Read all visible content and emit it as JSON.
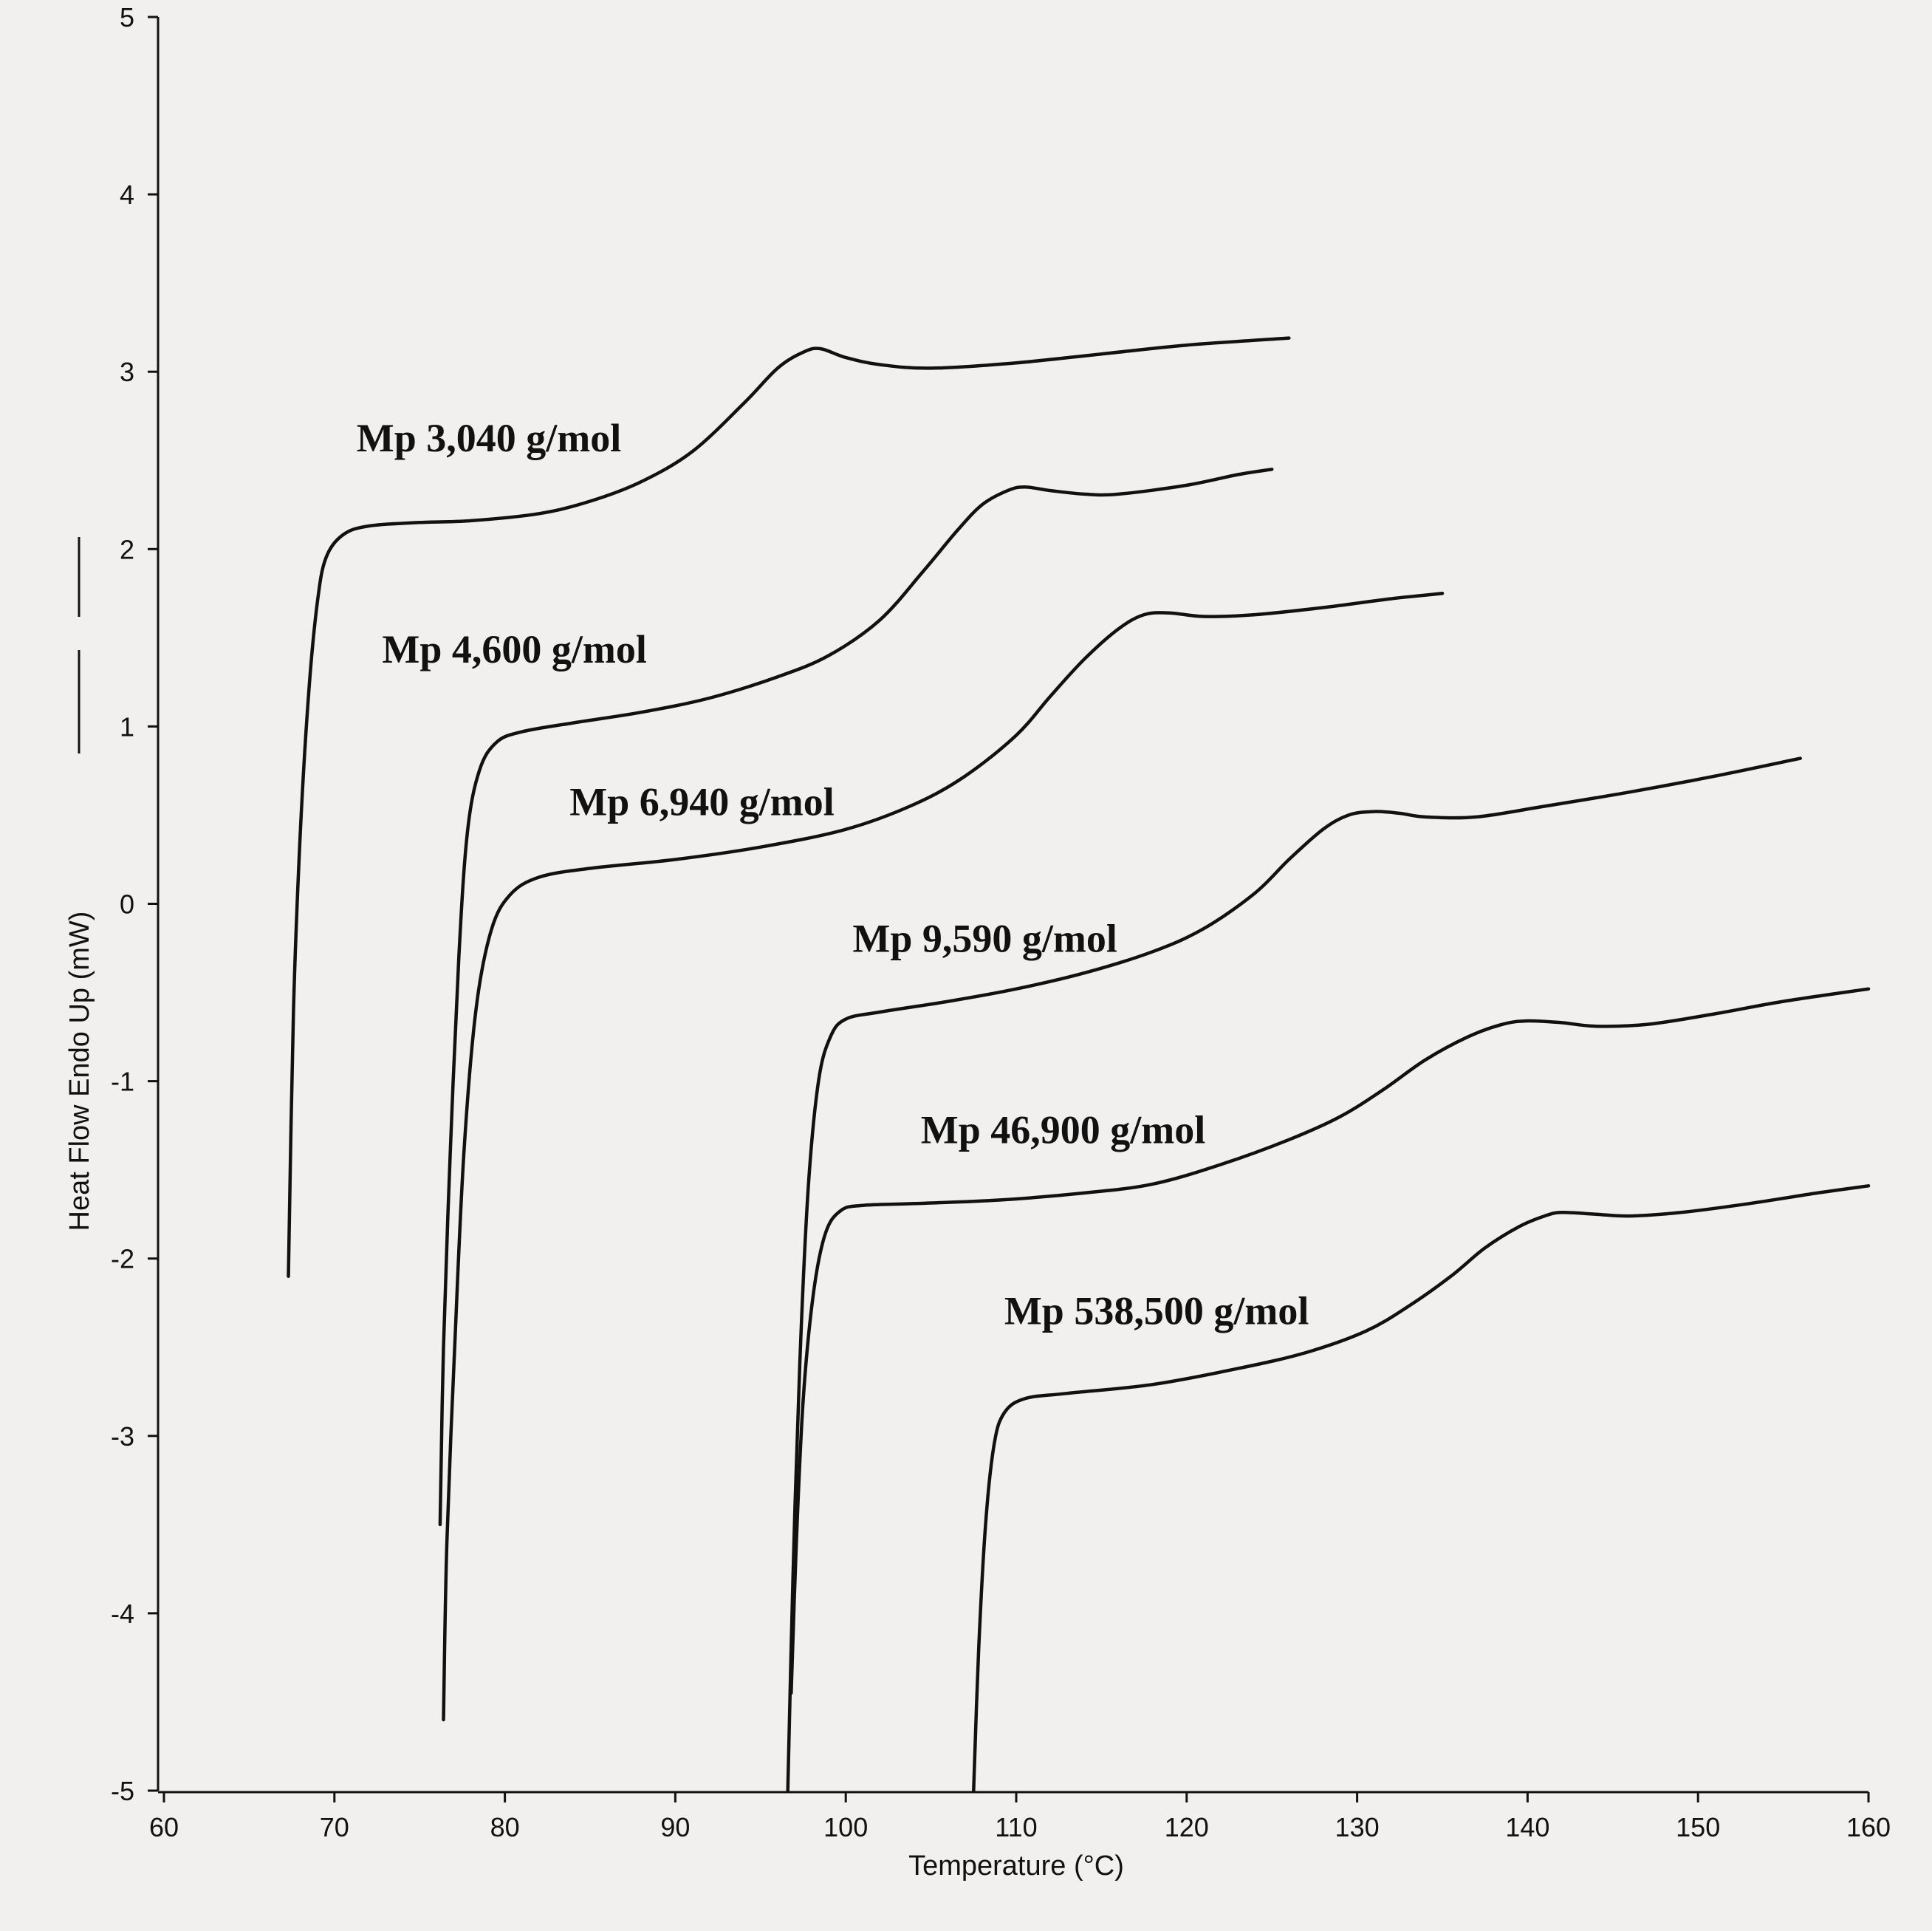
{
  "chart_data": {
    "type": "line",
    "xlabel": "Temperature (°C)",
    "ylabel": "Heat Flow Endo Up (mW)",
    "xlim": [
      60,
      160
    ],
    "ylim": [
      -5,
      5
    ],
    "xticks": [
      60,
      70,
      80,
      90,
      100,
      110,
      120,
      130,
      140,
      150,
      160
    ],
    "yticks": [
      5,
      4,
      3,
      2,
      1,
      0,
      -1,
      -2,
      -3,
      -4,
      -5
    ],
    "grid": false,
    "series": [
      {
        "name": "Mp 3,040 g/mol",
        "points": [
          [
            67.3,
            -2.1
          ],
          [
            67.6,
            -0.6
          ],
          [
            68.0,
            0.4
          ],
          [
            68.5,
            1.2
          ],
          [
            69.0,
            1.7
          ],
          [
            69.5,
            1.95
          ],
          [
            70.5,
            2.08
          ],
          [
            72,
            2.13
          ],
          [
            75,
            2.15
          ],
          [
            78,
            2.16
          ],
          [
            82,
            2.2
          ],
          [
            85,
            2.27
          ],
          [
            88,
            2.38
          ],
          [
            91,
            2.55
          ],
          [
            94,
            2.82
          ],
          [
            96,
            3.02
          ],
          [
            97.5,
            3.11
          ],
          [
            98.5,
            3.13
          ],
          [
            100,
            3.08
          ],
          [
            102,
            3.04
          ],
          [
            105,
            3.02
          ],
          [
            110,
            3.05
          ],
          [
            115,
            3.1
          ],
          [
            120,
            3.15
          ],
          [
            126,
            3.19
          ]
        ]
      },
      {
        "name": "Mp 4,600 g/mol",
        "points": [
          [
            76.2,
            -3.5
          ],
          [
            76.4,
            -2.5
          ],
          [
            76.8,
            -1.4
          ],
          [
            77.3,
            -0.3
          ],
          [
            77.8,
            0.4
          ],
          [
            78.5,
            0.75
          ],
          [
            79.5,
            0.91
          ],
          [
            81,
            0.97
          ],
          [
            84,
            1.02
          ],
          [
            88,
            1.08
          ],
          [
            92,
            1.16
          ],
          [
            96,
            1.28
          ],
          [
            99,
            1.4
          ],
          [
            102,
            1.6
          ],
          [
            104.5,
            1.87
          ],
          [
            106.5,
            2.1
          ],
          [
            108,
            2.25
          ],
          [
            109.5,
            2.33
          ],
          [
            110.5,
            2.35
          ],
          [
            112,
            2.33
          ],
          [
            114,
            2.31
          ],
          [
            116,
            2.31
          ],
          [
            120,
            2.36
          ],
          [
            123,
            2.42
          ],
          [
            125,
            2.45
          ]
        ]
      },
      {
        "name": "Mp 6,940 g/mol",
        "points": [
          [
            76.4,
            -4.6
          ],
          [
            76.6,
            -3.6
          ],
          [
            77.1,
            -2.4
          ],
          [
            77.6,
            -1.4
          ],
          [
            78.3,
            -0.6
          ],
          [
            79.2,
            -0.15
          ],
          [
            80.3,
            0.05
          ],
          [
            82,
            0.15
          ],
          [
            85,
            0.2
          ],
          [
            90,
            0.25
          ],
          [
            95,
            0.32
          ],
          [
            100,
            0.42
          ],
          [
            104,
            0.56
          ],
          [
            107,
            0.72
          ],
          [
            110,
            0.95
          ],
          [
            112,
            1.17
          ],
          [
            114,
            1.38
          ],
          [
            116,
            1.55
          ],
          [
            117.5,
            1.63
          ],
          [
            119,
            1.64
          ],
          [
            121,
            1.62
          ],
          [
            124,
            1.63
          ],
          [
            128,
            1.67
          ],
          [
            132,
            1.72
          ],
          [
            135,
            1.75
          ]
        ]
      },
      {
        "name": "Mp 9,590 g/mol",
        "points": [
          [
            96.6,
            -5.0
          ],
          [
            96.9,
            -3.8
          ],
          [
            97.3,
            -2.6
          ],
          [
            97.8,
            -1.6
          ],
          [
            98.4,
            -1.0
          ],
          [
            99.1,
            -0.75
          ],
          [
            100,
            -0.65
          ],
          [
            102,
            -0.61
          ],
          [
            106,
            -0.55
          ],
          [
            110,
            -0.48
          ],
          [
            114,
            -0.39
          ],
          [
            118,
            -0.27
          ],
          [
            121,
            -0.14
          ],
          [
            124,
            0.06
          ],
          [
            126,
            0.25
          ],
          [
            128,
            0.42
          ],
          [
            129.5,
            0.5
          ],
          [
            131,
            0.52
          ],
          [
            132.5,
            0.51
          ],
          [
            134,
            0.49
          ],
          [
            137,
            0.49
          ],
          [
            141,
            0.55
          ],
          [
            146,
            0.63
          ],
          [
            151,
            0.72
          ],
          [
            156,
            0.82
          ]
        ]
      },
      {
        "name": "Mp 46,900 g/mol",
        "points": [
          [
            96.8,
            -4.45
          ],
          [
            97.1,
            -3.6
          ],
          [
            97.5,
            -2.8
          ],
          [
            98.1,
            -2.2
          ],
          [
            98.8,
            -1.86
          ],
          [
            99.7,
            -1.73
          ],
          [
            101,
            -1.7
          ],
          [
            104,
            -1.69
          ],
          [
            109,
            -1.67
          ],
          [
            114,
            -1.63
          ],
          [
            118,
            -1.58
          ],
          [
            122,
            -1.47
          ],
          [
            126,
            -1.33
          ],
          [
            129,
            -1.2
          ],
          [
            131.5,
            -1.05
          ],
          [
            134,
            -0.88
          ],
          [
            136.5,
            -0.75
          ],
          [
            138.5,
            -0.68
          ],
          [
            140,
            -0.66
          ],
          [
            142,
            -0.67
          ],
          [
            144,
            -0.69
          ],
          [
            147,
            -0.68
          ],
          [
            151,
            -0.62
          ],
          [
            155,
            -0.55
          ],
          [
            160,
            -0.48
          ]
        ]
      },
      {
        "name": "Mp 538,500 g/mol",
        "points": [
          [
            107.5,
            -5.0
          ],
          [
            107.8,
            -4.2
          ],
          [
            108.2,
            -3.5
          ],
          [
            108.7,
            -3.05
          ],
          [
            109.3,
            -2.87
          ],
          [
            110.5,
            -2.79
          ],
          [
            113,
            -2.76
          ],
          [
            118,
            -2.71
          ],
          [
            123,
            -2.62
          ],
          [
            127,
            -2.53
          ],
          [
            130.5,
            -2.41
          ],
          [
            133,
            -2.27
          ],
          [
            135.5,
            -2.1
          ],
          [
            137.5,
            -1.94
          ],
          [
            139.5,
            -1.82
          ],
          [
            141,
            -1.76
          ],
          [
            142,
            -1.74
          ],
          [
            144,
            -1.75
          ],
          [
            146,
            -1.76
          ],
          [
            149,
            -1.74
          ],
          [
            153,
            -1.69
          ],
          [
            157,
            -1.63
          ],
          [
            160,
            -1.59
          ]
        ]
      }
    ],
    "labels": [
      {
        "text": "Mp 3,040 g/mol",
        "x": 71.3,
        "y": 2.55
      },
      {
        "text": "Mp 4,600 g/mol",
        "x": 72.8,
        "y": 1.36
      },
      {
        "text": "Mp 6,940 g/mol",
        "x": 83.8,
        "y": 0.5
      },
      {
        "text": "Mp 9,590 g/mol",
        "x": 100.4,
        "y": -0.27
      },
      {
        "text": "Mp 46,900 g/mol",
        "x": 104.4,
        "y": -1.35
      },
      {
        "text": "Mp 538,500 g/mol",
        "x": 109.3,
        "y": -2.37
      }
    ]
  }
}
